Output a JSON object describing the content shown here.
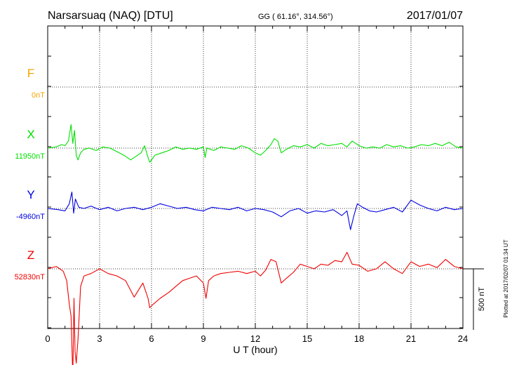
{
  "header": {
    "station": "Narsarsuaq (NAQ)  [DTU]",
    "coords": "GG ( 61.16°, 314.56°)",
    "date": "2017/01/07"
  },
  "side_note": "Plotted at 2017/02/07 01:34 UT",
  "scale_bar_label": "500 nT",
  "chart_data": {
    "type": "line",
    "xlabel": "U T (hour)",
    "xlim": [
      0,
      24
    ],
    "x_ticks": [
      "0",
      "3",
      "6",
      "9",
      "12",
      "15",
      "18",
      "21",
      "24"
    ],
    "grid": true,
    "scale_bar_nT": 500,
    "series": [
      {
        "name": "F",
        "baseline_label": "0nT",
        "color": "#f5a300",
        "x": [],
        "values": []
      },
      {
        "name": "X",
        "baseline_label": "11950nT",
        "color": "#00e000",
        "x": [
          0.0,
          0.5,
          0.8,
          1.0,
          1.2,
          1.35,
          1.45,
          1.55,
          1.65,
          1.75,
          1.9,
          2.1,
          2.4,
          2.8,
          3.2,
          3.6,
          4.0,
          4.4,
          4.8,
          5.0,
          5.4,
          5.6,
          5.8,
          5.9,
          6.0,
          6.2,
          6.6,
          7.0,
          7.4,
          7.8,
          8.2,
          8.6,
          9.0,
          9.1,
          9.2,
          9.6,
          10.0,
          10.4,
          10.8,
          11.2,
          11.6,
          12.0,
          12.3,
          12.6,
          12.9,
          13.1,
          13.3,
          13.5,
          13.8,
          14.2,
          14.6,
          15.0,
          15.4,
          15.8,
          16.2,
          16.6,
          17.0,
          17.3,
          17.6,
          18.0,
          18.4,
          18.8,
          19.2,
          19.6,
          20.0,
          20.4,
          20.8,
          21.2,
          21.6,
          22.0,
          22.4,
          22.8,
          23.2,
          23.6,
          24.0
        ],
        "values": [
          0,
          10,
          30,
          20,
          60,
          200,
          40,
          150,
          -60,
          -100,
          -40,
          -10,
          0,
          -20,
          10,
          0,
          -30,
          -60,
          -100,
          -80,
          -40,
          20,
          -80,
          -120,
          -100,
          -60,
          -40,
          -20,
          10,
          -10,
          0,
          -10,
          10,
          -80,
          0,
          -20,
          10,
          0,
          -10,
          20,
          0,
          -40,
          -60,
          -20,
          30,
          80,
          60,
          -40,
          -10,
          20,
          10,
          30,
          0,
          40,
          20,
          30,
          40,
          10,
          60,
          20,
          0,
          10,
          0,
          30,
          10,
          20,
          0,
          10,
          30,
          20,
          40,
          20,
          50,
          10,
          0
        ]
      },
      {
        "name": "Y",
        "baseline_label": "-4960nT",
        "color": "#0000e0",
        "x": [
          0.0,
          0.6,
          1.0,
          1.25,
          1.4,
          1.5,
          1.6,
          1.8,
          2.1,
          2.5,
          3.0,
          3.5,
          4.0,
          4.5,
          5.0,
          5.5,
          6.0,
          6.5,
          7.0,
          7.5,
          8.0,
          8.5,
          9.0,
          9.5,
          10.0,
          10.5,
          11.0,
          11.5,
          12.0,
          12.5,
          13.0,
          13.5,
          14.0,
          14.5,
          15.0,
          15.5,
          16.0,
          16.5,
          17.0,
          17.3,
          17.5,
          17.7,
          17.9,
          18.2,
          18.6,
          19.0,
          19.5,
          20.0,
          20.5,
          21.0,
          21.5,
          22.0,
          22.5,
          23.0,
          23.5,
          24.0
        ],
        "values": [
          0,
          -10,
          -20,
          40,
          140,
          -40,
          80,
          10,
          0,
          20,
          -10,
          10,
          -20,
          0,
          10,
          -10,
          10,
          40,
          20,
          0,
          10,
          -10,
          -20,
          10,
          0,
          -10,
          10,
          -20,
          0,
          -10,
          -30,
          -70,
          -20,
          0,
          -40,
          -20,
          -30,
          -10,
          -60,
          -20,
          -180,
          -60,
          40,
          10,
          -20,
          -30,
          -10,
          10,
          -30,
          70,
          30,
          0,
          -20,
          10,
          -10,
          0
        ]
      },
      {
        "name": "Z",
        "baseline_label": "52830nT",
        "color": "#f00000",
        "x": [
          0.0,
          0.5,
          0.9,
          1.1,
          1.25,
          1.35,
          1.45,
          1.52,
          1.58,
          1.65,
          1.75,
          1.9,
          2.1,
          2.5,
          3.0,
          3.5,
          4.0,
          4.5,
          5.0,
          5.5,
          5.8,
          5.9,
          6.1,
          6.5,
          7.0,
          7.4,
          7.8,
          8.2,
          8.6,
          9.0,
          9.15,
          9.3,
          9.6,
          10.0,
          10.5,
          11.0,
          11.5,
          12.0,
          12.3,
          12.6,
          12.9,
          13.2,
          13.5,
          13.8,
          14.2,
          14.6,
          15.0,
          15.4,
          15.8,
          16.2,
          16.6,
          17.0,
          17.3,
          17.6,
          18.0,
          18.5,
          19.0,
          19.5,
          20.0,
          20.5,
          21.0,
          21.5,
          22.0,
          22.5,
          23.0,
          23.5,
          24.0
        ],
        "values": [
          0,
          20,
          -20,
          -100,
          -300,
          -400,
          -920,
          -250,
          -700,
          -800,
          -600,
          -150,
          -60,
          -40,
          0,
          -40,
          -60,
          -100,
          -240,
          -120,
          -250,
          -330,
          -300,
          -250,
          -200,
          -150,
          -100,
          -80,
          -60,
          -120,
          -250,
          -100,
          -60,
          -40,
          -30,
          -20,
          -40,
          -20,
          -60,
          -10,
          80,
          60,
          -120,
          -80,
          -30,
          40,
          20,
          0,
          40,
          30,
          70,
          60,
          140,
          40,
          30,
          -20,
          0,
          60,
          0,
          -40,
          60,
          20,
          40,
          10,
          80,
          20,
          0
        ]
      }
    ]
  }
}
